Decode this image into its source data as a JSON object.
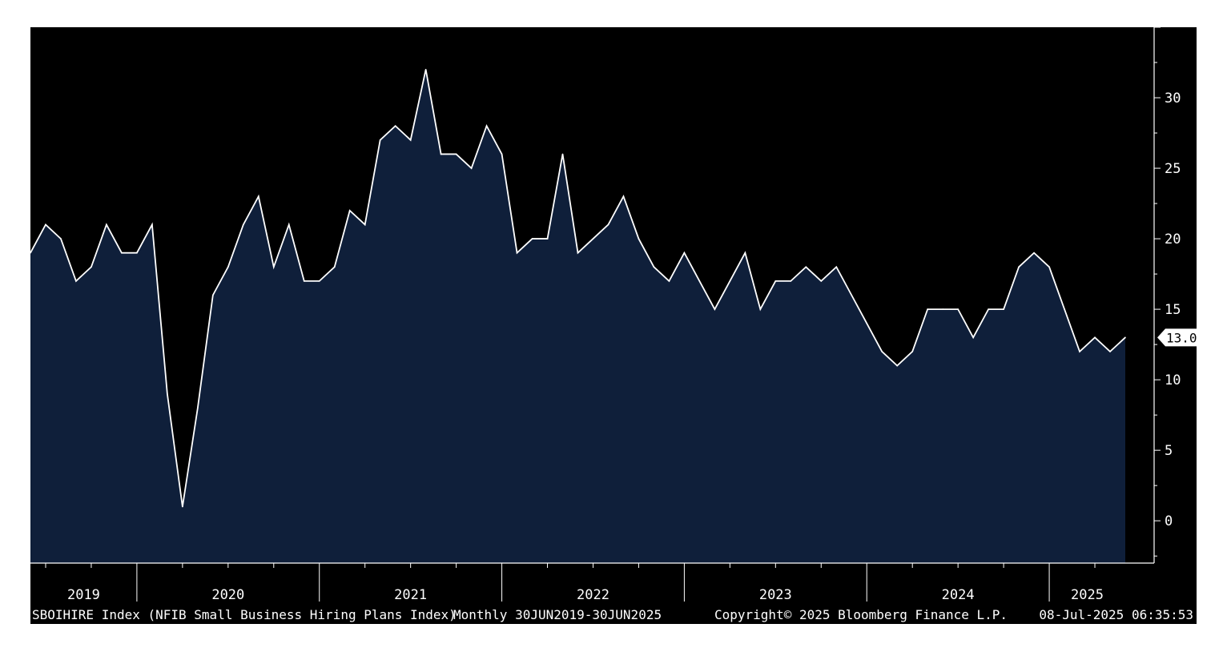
{
  "chart_data": {
    "type": "area",
    "ticker": "SBOIHIRE Index (NFIB Small Business Hiring Plans Index)",
    "frequency_range": "Monthly 30JUN2019-30JUN2025",
    "copyright": "Copyright© 2025 Bloomberg Finance L.P.",
    "timestamp": "08-Jul-2025 06:35:53",
    "last_value_label": "13.0",
    "years": [
      "2019",
      "2020",
      "2021",
      "2022",
      "2023",
      "2024",
      "2025"
    ],
    "x_start": "2019-06",
    "x_end": "2025-06",
    "ylim": [
      -3,
      35
    ],
    "yticks": [
      0,
      5,
      10,
      15,
      20,
      25,
      30
    ],
    "grid": false,
    "colors": {
      "background": "#000000",
      "fill": "#0f1f3a",
      "line": "#ffffff",
      "frame": "#ffffff"
    },
    "values": [
      19,
      21,
      20,
      17,
      18,
      21,
      19,
      19,
      21,
      9,
      1,
      8,
      16,
      18,
      21,
      23,
      18,
      21,
      17,
      17,
      18,
      22,
      21,
      27,
      28,
      27,
      32,
      26,
      26,
      25,
      28,
      26,
      19,
      20,
      20,
      26,
      19,
      20,
      21,
      23,
      20,
      18,
      17,
      19,
      17,
      15,
      17,
      19,
      15,
      17,
      17,
      18,
      17,
      18,
      16,
      14,
      12,
      11,
      12,
      15,
      15,
      15,
      13,
      15,
      15,
      18,
      19,
      18,
      15,
      12,
      13,
      12,
      13
    ]
  }
}
